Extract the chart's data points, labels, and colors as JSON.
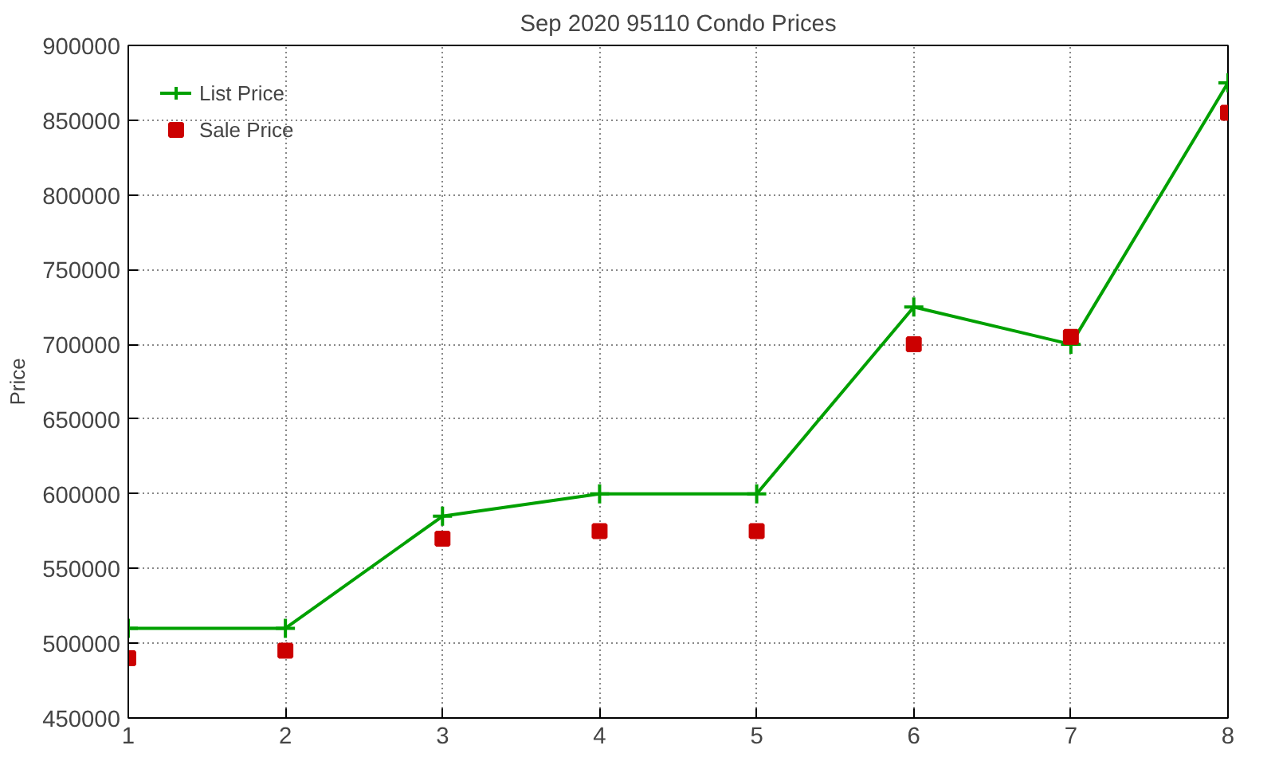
{
  "chart_data": {
    "type": "line",
    "title": "Sep 2020 95110 Condo Prices",
    "ylabel": "Price",
    "x": [
      1,
      2,
      3,
      4,
      5,
      6,
      7,
      8
    ],
    "xlim": [
      1,
      8
    ],
    "xticks": [
      1,
      2,
      3,
      4,
      5,
      6,
      7,
      8
    ],
    "ylim": [
      450000,
      900000
    ],
    "yticks": [
      450000,
      500000,
      550000,
      600000,
      650000,
      700000,
      750000,
      800000,
      850000,
      900000
    ],
    "series": [
      {
        "name": "List Price",
        "color": "#00a000",
        "marker": "cross",
        "values": [
          510000,
          510000,
          585000,
          600000,
          600000,
          725000,
          700000,
          875000
        ]
      },
      {
        "name": "Sale Price",
        "color": "#cc0000",
        "type": "scatter",
        "marker": "square",
        "values": [
          490000,
          495000,
          570000,
          575000,
          575000,
          700000,
          705000,
          855000
        ]
      }
    ],
    "grid": true,
    "legend": "top left",
    "line_style": "solid"
  }
}
